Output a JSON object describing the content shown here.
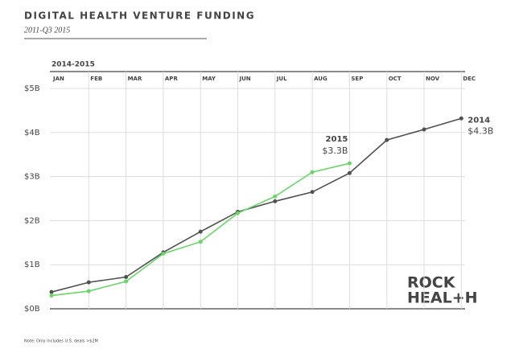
{
  "chart_data": {
    "type": "line",
    "title": "DIGITAL HEALTH VENTURE FUNDING",
    "subtitle": "2011-Q3 2015",
    "x_header": "2014-2015",
    "categories": [
      "JAN",
      "FEB",
      "MAR",
      "APR",
      "MAY",
      "JUN",
      "JUL",
      "AUG",
      "SEP",
      "OCT",
      "NOV",
      "DEC"
    ],
    "series": [
      {
        "name": "2014",
        "color": "#505050",
        "values": [
          0.38,
          0.6,
          0.72,
          1.28,
          1.75,
          2.2,
          2.44,
          2.65,
          3.08,
          3.83,
          4.07,
          4.32
        ],
        "value_labels": [
          null,
          null,
          null,
          null,
          null,
          null,
          null,
          null,
          null,
          null,
          null,
          "$4.3B"
        ]
      },
      {
        "name": "2015",
        "color": "#6bd46b",
        "values": [
          0.3,
          0.4,
          0.62,
          1.25,
          1.52,
          2.17,
          2.55,
          3.1,
          3.3,
          null,
          null,
          null
        ],
        "value_labels": [
          null,
          null,
          null,
          null,
          null,
          null,
          null,
          null,
          "$3.3B",
          null,
          null,
          null
        ]
      }
    ],
    "ylim": [
      0,
      5
    ],
    "yticks": [
      {
        "value": 0,
        "label": "$0B"
      },
      {
        "value": 1,
        "label": "$1B"
      },
      {
        "value": 2,
        "label": "$2B"
      },
      {
        "value": 3,
        "label": "$3B"
      },
      {
        "value": 4,
        "label": "$4B"
      },
      {
        "value": 5,
        "label": "$5B"
      }
    ],
    "grid": true,
    "note": "Note: Only includes U.S. deals >$2M",
    "logo": [
      "ROCK",
      "HEAL+H"
    ]
  }
}
